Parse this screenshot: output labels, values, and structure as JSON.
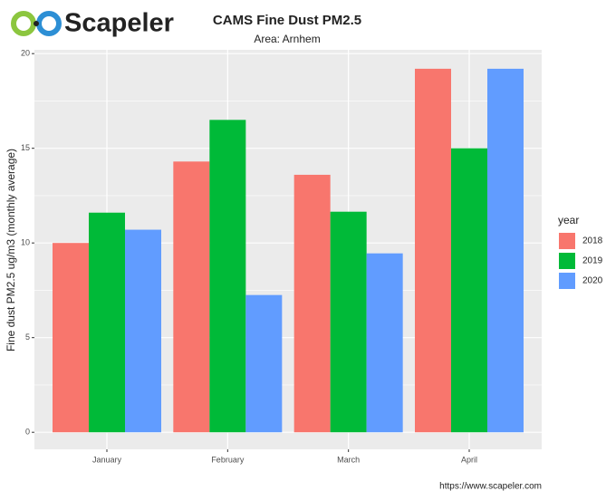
{
  "brand": "Scapeler",
  "footer": "https://www.scapeler.com",
  "chart_data": {
    "type": "bar",
    "title": "CAMS Fine Dust PM2.5",
    "subtitle": "Area: Arnhem",
    "y_label": "Fine dust PM2.5 ug/m3 (monthly average)",
    "legend_title": "year",
    "categories": [
      "January",
      "February",
      "March",
      "April"
    ],
    "series": [
      {
        "name": "2018",
        "color": "#F8766D",
        "values": [
          10.0,
          14.3,
          13.6,
          19.2
        ]
      },
      {
        "name": "2019",
        "color": "#00BA38",
        "values": [
          11.6,
          16.5,
          11.65,
          15.0
        ]
      },
      {
        "name": "2020",
        "color": "#619CFF",
        "values": [
          10.7,
          7.25,
          9.45,
          19.2
        ]
      }
    ],
    "ylim": [
      -0.9,
      20.2
    ],
    "yticks": [
      0,
      5,
      10,
      15,
      20
    ],
    "grid": true,
    "legend": "right"
  }
}
